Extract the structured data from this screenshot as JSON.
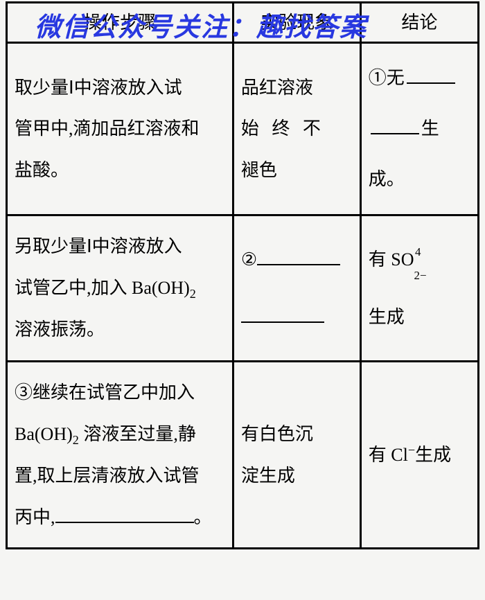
{
  "watermark": "微信公众号关注：趣找答案",
  "table": {
    "columns": {
      "col1_width": "48%",
      "col2_width": "27%",
      "col3_width": "25%"
    },
    "header": {
      "c1": "操作步骤",
      "c2": "实验现象",
      "c3": "结论"
    },
    "row1": {
      "op_a": "取少量Ⅰ中溶液放入试",
      "op_b": "管甲中,滴加品红溶液和",
      "op_c": "盐酸。",
      "phen_a": "品红溶液",
      "phen_b": "始 终 不",
      "phen_c": "褪色",
      "conc_a": "①无",
      "conc_b": "生成。"
    },
    "row2": {
      "op_a": "另取少量Ⅰ中溶液放入",
      "op_b": "试管乙中,加入 Ba(OH)",
      "op_sub": "2",
      "op_c": "溶液振荡。",
      "phen_a": "②",
      "conc_a": "有 SO",
      "conc_b": "生成"
    },
    "row3": {
      "op_a": "③继续在试管乙中加入",
      "op_b": "Ba(OH)",
      "op_b2": " 溶液至过量,静",
      "op_c": "置,取上层清液放入试管",
      "op_d": "丙中,",
      "op_e": "。",
      "phen_a": "有白色沉",
      "phen_b": "淀生成",
      "conc_a": "有 Cl",
      "conc_a2": "生成"
    }
  },
  "style": {
    "background": "#f5f5f3",
    "border_color": "#000000",
    "border_width": 3,
    "watermark_color": "#2838e0",
    "font_family": "SimSun",
    "body_fontsize": 26,
    "line_height": 2.3
  }
}
